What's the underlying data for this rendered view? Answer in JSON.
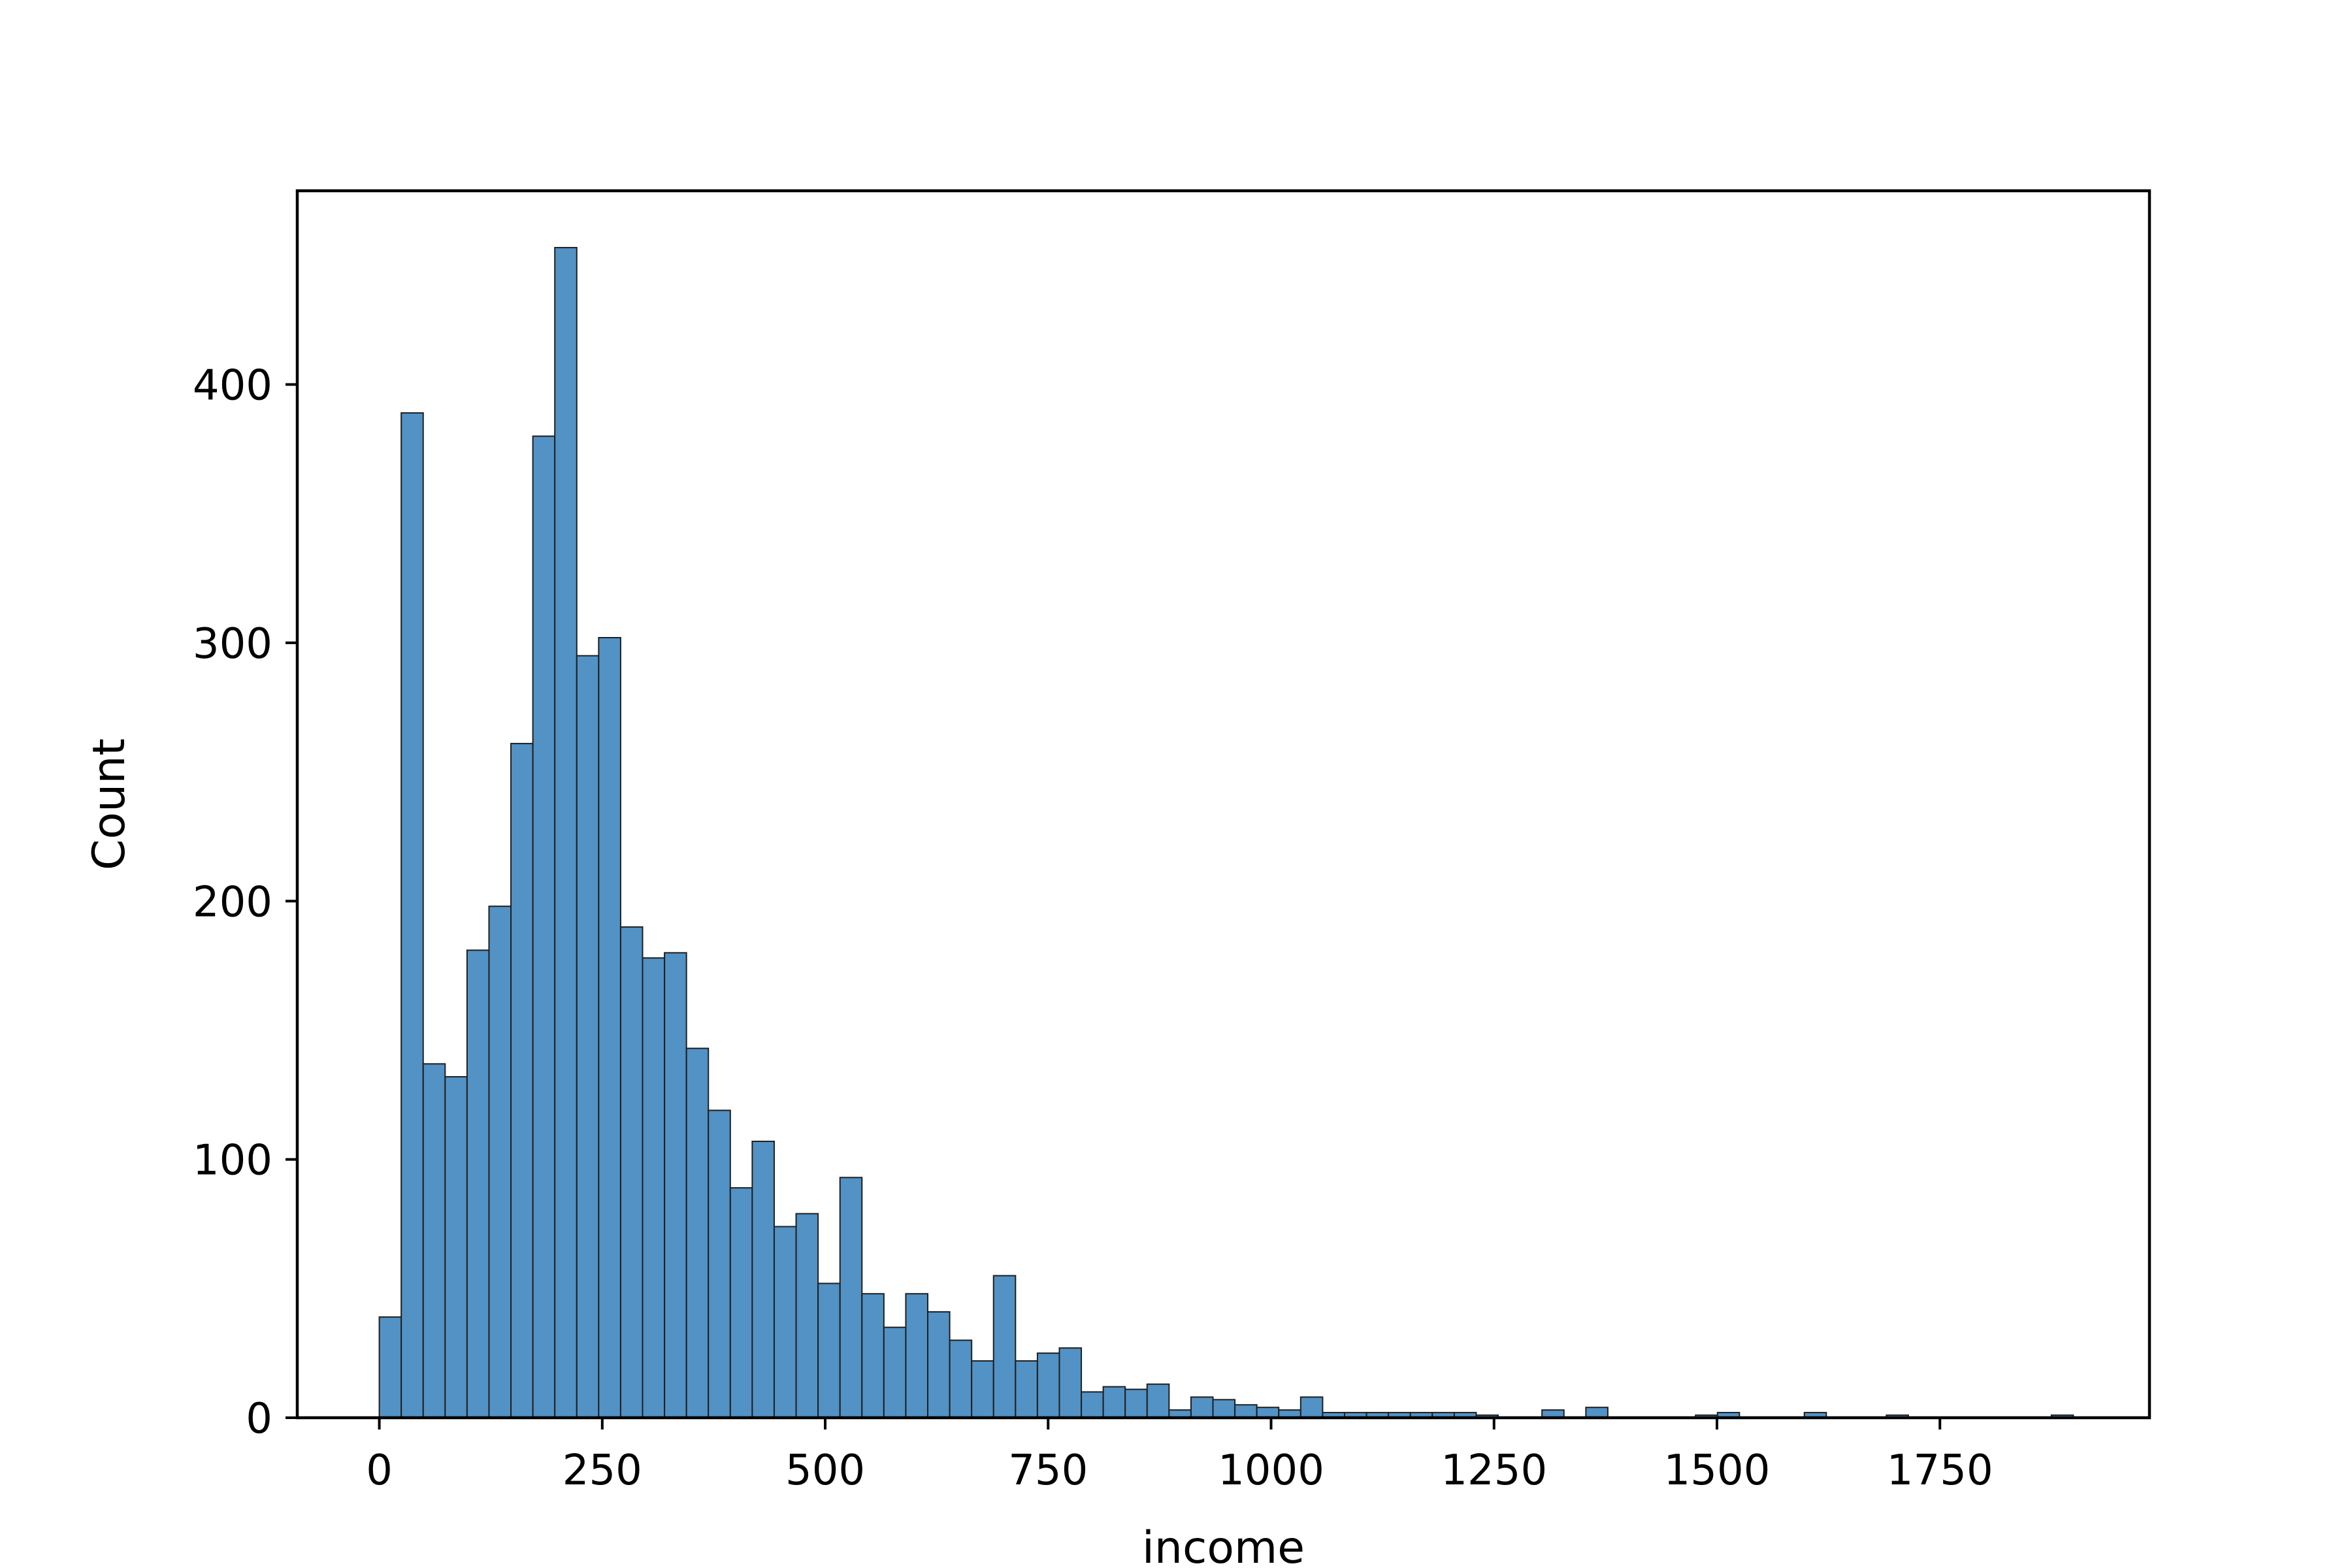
{
  "colors": {
    "bar_fill": "#5292c5",
    "bar_edge": "#1f1f1f",
    "axes": "#000000",
    "background": "#ffffff"
  },
  "chart_data": {
    "type": "bar",
    "title": "",
    "xlabel": "income",
    "ylabel": "Count",
    "grid": false,
    "legend": "none",
    "xlim": [
      -92,
      1985
    ],
    "ylim": [
      0,
      475
    ],
    "xticks": [
      0,
      250,
      500,
      750,
      1000,
      1250,
      1500,
      1750
    ],
    "xtick_labels": [
      "0",
      "250",
      "500",
      "750",
      "1000",
      "1250",
      "1500",
      "1750"
    ],
    "yticks": [
      0,
      100,
      200,
      300,
      400
    ],
    "ytick_labels": [
      "0",
      "100",
      "200",
      "300",
      "400"
    ],
    "bin_start": 0,
    "bin_width": 24.6,
    "values": [
      39,
      389,
      137,
      132,
      181,
      198,
      261,
      380,
      453,
      295,
      302,
      190,
      178,
      180,
      143,
      119,
      89,
      107,
      74,
      79,
      52,
      93,
      48,
      35,
      48,
      41,
      30,
      22,
      55,
      22,
      25,
      27,
      10,
      12,
      11,
      13,
      3,
      8,
      7,
      5,
      4,
      3,
      8,
      2,
      2,
      2,
      2,
      2,
      2,
      2,
      1,
      0,
      0,
      3,
      0,
      4,
      0,
      0,
      0,
      0,
      1,
      2,
      0,
      0,
      0,
      0,
      0,
      0,
      0,
      0,
      0,
      0,
      0,
      0,
      0,
      0,
      0,
      0,
      0,
      0,
      0,
      0,
      0,
      0,
      0,
      0,
      0,
      0,
      0,
      0,
      0,
      0,
      0,
      0,
      0,
      0,
      0,
      0,
      0,
      0,
      0,
      0,
      0,
      0,
      0,
      0,
      0,
      0,
      0,
      0,
      0,
      0,
      0,
      0,
      0,
      0,
      0,
      0,
      0,
      0,
      0,
      0,
      0,
      0,
      0,
      0,
      0,
      0,
      0,
      0,
      0,
      0,
      0,
      0,
      0,
      0,
      0,
      0,
      0,
      0
    ],
    "outlier_bins": [
      {
        "x_start": 1598,
        "value": 2
      },
      {
        "x_start": 1690,
        "value": 1
      },
      {
        "x_start": 1875,
        "value": 1
      }
    ]
  }
}
